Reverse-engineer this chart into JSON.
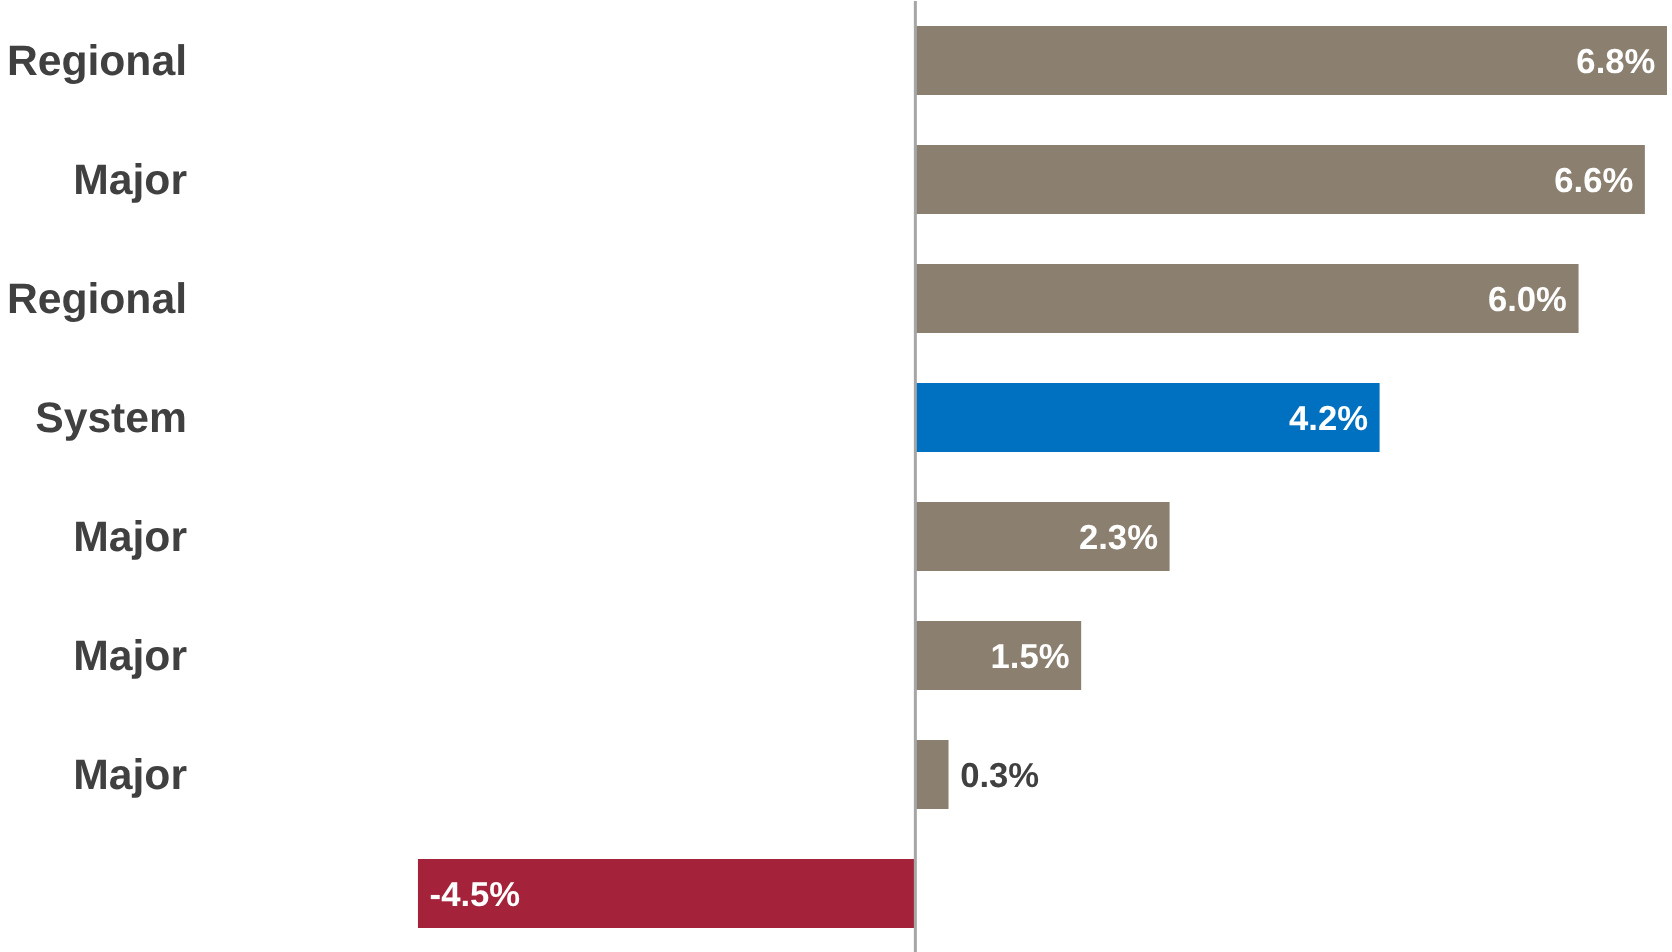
{
  "chart_data": {
    "type": "bar",
    "orientation": "horizontal",
    "categories": [
      "Regional",
      "Major",
      "Regional",
      "System",
      "Major",
      "Major",
      "Major",
      null
    ],
    "values": [
      6.8,
      6.6,
      6.0,
      4.2,
      2.3,
      1.5,
      0.3,
      -4.5
    ],
    "colors": [
      "#8b7f70",
      "#8b7f70",
      "#8b7f70",
      "#0070c0",
      "#8b7f70",
      "#8b7f70",
      "#8b7f70",
      "#a4233a"
    ],
    "value_labels": [
      "6.8%",
      "6.6%",
      "6.0%",
      "4.2%",
      "2.3%",
      "1.5%",
      "0.3%",
      "-4.5%"
    ],
    "tick_labels": "y",
    "grid": false,
    "ref_lines": [
      {
        "axis": "x",
        "value": 0,
        "color": "#a6a6a6"
      }
    ]
  }
}
